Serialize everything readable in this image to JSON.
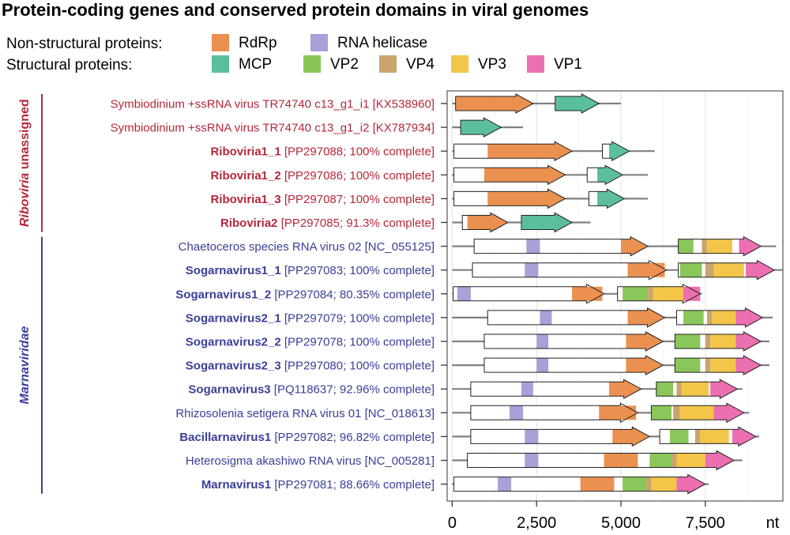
{
  "title": "Protein-coding genes and conserved protein domains in viral genomes",
  "legend": {
    "nonstructural_label": "Non-structural proteins:",
    "structural_label": "Structural proteins:",
    "nonstructural": [
      {
        "name": "RdRp",
        "color": "#eb9150"
      },
      {
        "name": "RNA helicase",
        "color": "#a7a1d8"
      }
    ],
    "structural": [
      {
        "name": "MCP",
        "color": "#5cbf9b"
      },
      {
        "name": "VP2",
        "color": "#8ac75a"
      },
      {
        "name": "VP4",
        "color": "#c9a56b"
      },
      {
        "name": "VP3",
        "color": "#f3c64a"
      },
      {
        "name": "VP1",
        "color": "#ec6fb1"
      }
    ]
  },
  "colors": {
    "riboviria": "#b4283c",
    "marnaviridae": "#3a3f98",
    "genome_line": "#808080"
  },
  "groups": [
    {
      "label_italic": "Riboviria",
      "label_rest": " unassigned",
      "color": "#b4283c",
      "from": 0,
      "to": 5
    },
    {
      "label_italic": "Marnaviridae",
      "label_rest": "",
      "color": "#3a3f98",
      "from": 6,
      "to": 16
    }
  ],
  "axis": {
    "unit": "nt",
    "ticks": [
      {
        "value": 0,
        "label": "0"
      },
      {
        "value": 2500,
        "label": "2,500"
      },
      {
        "value": 5000,
        "label": "5,000"
      },
      {
        "value": 7500,
        "label": "7,500"
      }
    ],
    "xmin": -150,
    "xmax": 9800
  },
  "genomes": [
    {
      "bold": "",
      "rest": "Symbiodinium +ssRNA virus TR74740 c13_g1_i1 [KX538960]",
      "group": 0,
      "length": 5000,
      "orfs": [],
      "arrows": [
        {
          "start": 100,
          "end": 2400,
          "color": "#eb9150"
        },
        {
          "start": 3050,
          "end": 4350,
          "color": "#5cbf9b"
        }
      ],
      "domains": []
    },
    {
      "bold": "",
      "rest": "Symbiodinium +ssRNA virus TR74740 c13_g1_i2 [KX787934]",
      "group": 0,
      "length": 2100,
      "orfs": [],
      "arrows": [
        {
          "start": 250,
          "end": 1450,
          "color": "#5cbf9b"
        }
      ],
      "domains": []
    },
    {
      "bold": "Riboviria1_1",
      "rest": " [PP297088; 100% complete]",
      "group": 0,
      "length": 6000,
      "orfs": [
        {
          "start": 50,
          "end": 3550
        },
        {
          "start": 4450,
          "end": 5250
        }
      ],
      "arrows": [],
      "domains": [
        {
          "start": 1050,
          "end": 3550,
          "color": "#eb9150"
        },
        {
          "start": 4650,
          "end": 5250,
          "color": "#5cbf9b"
        }
      ]
    },
    {
      "bold": "Riboviria1_2",
      "rest": " [PP297086; 100% complete]",
      "group": 0,
      "length": 5800,
      "orfs": [
        {
          "start": 50,
          "end": 3350
        },
        {
          "start": 4000,
          "end": 5050
        }
      ],
      "arrows": [],
      "domains": [
        {
          "start": 950,
          "end": 3350,
          "color": "#eb9150"
        },
        {
          "start": 4300,
          "end": 5050,
          "color": "#5cbf9b"
        }
      ]
    },
    {
      "bold": "Riboviria1_3",
      "rest": " [PP297087; 100% complete]",
      "group": 0,
      "length": 5800,
      "orfs": [
        {
          "start": 50,
          "end": 3350
        },
        {
          "start": 4050,
          "end": 5100
        }
      ],
      "arrows": [],
      "domains": [
        {
          "start": 1050,
          "end": 3350,
          "color": "#eb9150"
        },
        {
          "start": 4300,
          "end": 5100,
          "color": "#5cbf9b"
        }
      ]
    },
    {
      "bold": "Riboviria2",
      "rest": " [PP297085; 91.3% complete]",
      "group": 0,
      "length": 4100,
      "orfs": [
        {
          "start": 300,
          "end": 1650
        }
      ],
      "arrows": [
        {
          "start": 2050,
          "end": 3550,
          "color": "#5cbf9b"
        }
      ],
      "domains": [
        {
          "start": 450,
          "end": 1650,
          "color": "#eb9150"
        }
      ]
    },
    {
      "bold": "",
      "rest": "Chaetoceros species RNA virus 02 [NC_055125]",
      "group": 1,
      "length": 9600,
      "orfs": [
        {
          "start": 650,
          "end": 5800
        },
        {
          "start": 6700,
          "end": 9150
        }
      ],
      "arrows": [],
      "domains": [
        {
          "start": 2200,
          "end": 2600,
          "color": "#a7a1d8"
        },
        {
          "start": 5000,
          "end": 5800,
          "color": "#eb9150"
        },
        {
          "start": 6700,
          "end": 7150,
          "color": "#8ac75a"
        },
        {
          "start": 7400,
          "end": 7550,
          "color": "#c9a56b"
        },
        {
          "start": 7550,
          "end": 8300,
          "color": "#f3c64a"
        },
        {
          "start": 8500,
          "end": 9150,
          "color": "#ec6fb1"
        }
      ]
    },
    {
      "bold": "Sogarnavirus1_1",
      "rest": " [PP297083; 100% complete]",
      "group": 1,
      "length": 9800,
      "orfs": [
        {
          "start": 600,
          "end": 6350
        },
        {
          "start": 6700,
          "end": 9550
        }
      ],
      "arrows": [],
      "domains": [
        {
          "start": 2150,
          "end": 2550,
          "color": "#a7a1d8"
        },
        {
          "start": 5200,
          "end": 6300,
          "color": "#eb9150"
        },
        {
          "start": 6750,
          "end": 7400,
          "color": "#8ac75a"
        },
        {
          "start": 7500,
          "end": 7750,
          "color": "#c9a56b"
        },
        {
          "start": 7750,
          "end": 8650,
          "color": "#f3c64a"
        },
        {
          "start": 8700,
          "end": 9550,
          "color": "#ec6fb1"
        }
      ]
    },
    {
      "bold": "Sogarnavirus1_2",
      "rest": " [PP297084; 80.35% complete]",
      "group": 1,
      "length": 7400,
      "orfs": [
        {
          "start": 30,
          "end": 4500
        },
        {
          "start": 4900,
          "end": 7350
        }
      ],
      "arrows": [],
      "domains": [
        {
          "start": 150,
          "end": 550,
          "color": "#a7a1d8"
        },
        {
          "start": 3550,
          "end": 4450,
          "color": "#eb9150"
        },
        {
          "start": 5050,
          "end": 5800,
          "color": "#8ac75a"
        },
        {
          "start": 5800,
          "end": 5950,
          "color": "#c9a56b"
        },
        {
          "start": 5950,
          "end": 6850,
          "color": "#f3c64a"
        },
        {
          "start": 6850,
          "end": 7350,
          "color": "#ec6fb1"
        }
      ]
    },
    {
      "bold": "Sogarnavirus2_1",
      "rest": " [PP297079; 100% complete]",
      "group": 1,
      "length": 9500,
      "orfs": [
        {
          "start": 1050,
          "end": 6300
        },
        {
          "start": 6650,
          "end": 9200
        }
      ],
      "arrows": [],
      "domains": [
        {
          "start": 2600,
          "end": 2950,
          "color": "#a7a1d8"
        },
        {
          "start": 5200,
          "end": 6300,
          "color": "#eb9150"
        },
        {
          "start": 6850,
          "end": 7450,
          "color": "#8ac75a"
        },
        {
          "start": 7550,
          "end": 7700,
          "color": "#c9a56b"
        },
        {
          "start": 7700,
          "end": 8400,
          "color": "#f3c64a"
        },
        {
          "start": 8400,
          "end": 9200,
          "color": "#ec6fb1"
        }
      ]
    },
    {
      "bold": "Sogarnavirus2_2",
      "rest": " [PP297078; 100% complete]",
      "group": 1,
      "length": 9400,
      "orfs": [
        {
          "start": 950,
          "end": 6250
        },
        {
          "start": 6600,
          "end": 9150
        }
      ],
      "arrows": [],
      "domains": [
        {
          "start": 2500,
          "end": 2850,
          "color": "#a7a1d8"
        },
        {
          "start": 5150,
          "end": 6250,
          "color": "#eb9150"
        },
        {
          "start": 6600,
          "end": 7350,
          "color": "#8ac75a"
        },
        {
          "start": 7500,
          "end": 7650,
          "color": "#c9a56b"
        },
        {
          "start": 7650,
          "end": 8400,
          "color": "#f3c64a"
        },
        {
          "start": 8400,
          "end": 9150,
          "color": "#ec6fb1"
        }
      ]
    },
    {
      "bold": "Sogarnavirus2_3",
      "rest": " [PP297080; 100% complete]",
      "group": 1,
      "length": 9400,
      "orfs": [
        {
          "start": 950,
          "end": 6250
        },
        {
          "start": 6600,
          "end": 9150
        }
      ],
      "arrows": [],
      "domains": [
        {
          "start": 2500,
          "end": 2850,
          "color": "#a7a1d8"
        },
        {
          "start": 5150,
          "end": 6250,
          "color": "#eb9150"
        },
        {
          "start": 6600,
          "end": 7350,
          "color": "#8ac75a"
        },
        {
          "start": 7500,
          "end": 7650,
          "color": "#c9a56b"
        },
        {
          "start": 7650,
          "end": 8400,
          "color": "#f3c64a"
        },
        {
          "start": 8400,
          "end": 9150,
          "color": "#ec6fb1"
        }
      ]
    },
    {
      "bold": "Sogarnavirus3",
      "rest": " [PQ118637; 92.96% complete]",
      "group": 1,
      "length": 8600,
      "orfs": [
        {
          "start": 550,
          "end": 5600
        },
        {
          "start": 6050,
          "end": 8450
        }
      ],
      "arrows": [],
      "domains": [
        {
          "start": 2050,
          "end": 2400,
          "color": "#a7a1d8"
        },
        {
          "start": 4650,
          "end": 5600,
          "color": "#eb9150"
        },
        {
          "start": 6050,
          "end": 6550,
          "color": "#8ac75a"
        },
        {
          "start": 6650,
          "end": 6800,
          "color": "#c9a56b"
        },
        {
          "start": 6800,
          "end": 7600,
          "color": "#f3c64a"
        },
        {
          "start": 7650,
          "end": 8450,
          "color": "#ec6fb1"
        }
      ]
    },
    {
      "bold": "",
      "rest": "Rhizosolenia setigera RNA virus 01 [NC_018613]",
      "group": 1,
      "length": 8800,
      "orfs": [
        {
          "start": 550,
          "end": 5500
        },
        {
          "start": 5900,
          "end": 8650
        }
      ],
      "arrows": [],
      "domains": [
        {
          "start": 1700,
          "end": 2100,
          "color": "#a7a1d8"
        },
        {
          "start": 4350,
          "end": 5450,
          "color": "#eb9150"
        },
        {
          "start": 5900,
          "end": 6500,
          "color": "#8ac75a"
        },
        {
          "start": 6550,
          "end": 6750,
          "color": "#c9a56b"
        },
        {
          "start": 6750,
          "end": 7750,
          "color": "#f3c64a"
        },
        {
          "start": 7750,
          "end": 8650,
          "color": "#ec6fb1"
        }
      ]
    },
    {
      "bold": "Bacillarnavirus1",
      "rest": " [PP297082; 96.82% complete]",
      "group": 1,
      "length": 9100,
      "orfs": [
        {
          "start": 550,
          "end": 5850
        },
        {
          "start": 6150,
          "end": 9000
        }
      ],
      "arrows": [],
      "domains": [
        {
          "start": 2150,
          "end": 2550,
          "color": "#a7a1d8"
        },
        {
          "start": 4750,
          "end": 5850,
          "color": "#eb9150"
        },
        {
          "start": 6450,
          "end": 7000,
          "color": "#8ac75a"
        },
        {
          "start": 7200,
          "end": 7350,
          "color": "#c9a56b"
        },
        {
          "start": 7350,
          "end": 8200,
          "color": "#f3c64a"
        },
        {
          "start": 8300,
          "end": 9000,
          "color": "#ec6fb1"
        }
      ]
    },
    {
      "bold": "",
      "rest": "Heterosigma akashiwo RNA virus [NC_005281]",
      "group": 1,
      "length": 8600,
      "orfs": [
        {
          "start": 450,
          "end": 8350
        }
      ],
      "arrows": [],
      "domains": [
        {
          "start": 2150,
          "end": 2550,
          "color": "#a7a1d8"
        },
        {
          "start": 4500,
          "end": 5500,
          "color": "#eb9150"
        },
        {
          "start": 5850,
          "end": 6500,
          "color": "#8ac75a"
        },
        {
          "start": 6500,
          "end": 6650,
          "color": "#c9a56b"
        },
        {
          "start": 6650,
          "end": 7500,
          "color": "#f3c64a"
        },
        {
          "start": 7500,
          "end": 8350,
          "color": "#ec6fb1"
        }
      ]
    },
    {
      "bold": "Marnavirus1",
      "rest": " [PP297081; 88.66% complete]",
      "group": 1,
      "length": 7600,
      "orfs": [
        {
          "start": 50,
          "end": 7500
        }
      ],
      "arrows": [],
      "domains": [
        {
          "start": 1350,
          "end": 1750,
          "color": "#a7a1d8"
        },
        {
          "start": 3800,
          "end": 4800,
          "color": "#eb9150"
        },
        {
          "start": 5050,
          "end": 5750,
          "color": "#8ac75a"
        },
        {
          "start": 5750,
          "end": 5900,
          "color": "#c9a56b"
        },
        {
          "start": 5900,
          "end": 6650,
          "color": "#f3c64a"
        },
        {
          "start": 6650,
          "end": 7500,
          "color": "#ec6fb1"
        }
      ]
    }
  ]
}
